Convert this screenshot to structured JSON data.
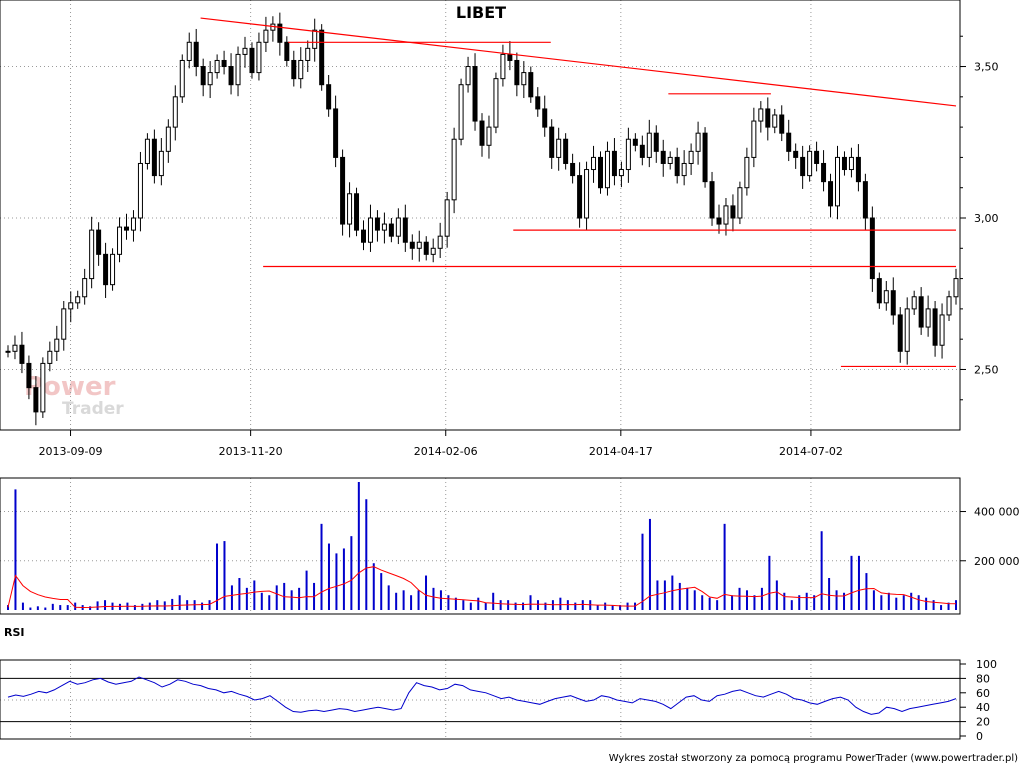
{
  "chart_data": [
    {
      "type": "candlestick",
      "title": "LIBET",
      "x_tick_labels": [
        "2013-09-09",
        "2013-11-20",
        "2014-02-06",
        "2014-04-17",
        "2014-07-02"
      ],
      "y_tick_labels": [
        "3,50",
        "3,00",
        "2,50"
      ],
      "ylim": [
        2.32,
        3.68
      ],
      "grid": true,
      "line_color": "#ff0000",
      "candle_color": "#000000",
      "close_series": [
        2.56,
        2.58,
        2.52,
        2.44,
        2.36,
        2.52,
        2.56,
        2.6,
        2.7,
        2.72,
        2.74,
        2.8,
        2.96,
        2.88,
        2.78,
        2.88,
        2.97,
        2.96,
        3.0,
        3.18,
        3.26,
        3.14,
        3.22,
        3.3,
        3.4,
        3.52,
        3.58,
        3.5,
        3.44,
        3.48,
        3.52,
        3.5,
        3.44,
        3.54,
        3.56,
        3.48,
        3.58,
        3.62,
        3.64,
        3.58,
        3.52,
        3.46,
        3.52,
        3.56,
        3.62,
        3.44,
        3.36,
        3.2,
        2.98,
        3.08,
        2.96,
        2.92,
        3.0,
        2.96,
        2.98,
        2.94,
        3.0,
        2.92,
        2.9,
        2.92,
        2.88,
        2.9,
        2.94,
        3.06,
        3.26,
        3.44,
        3.5,
        3.32,
        3.24,
        3.3,
        3.46,
        3.54,
        3.52,
        3.44,
        3.48,
        3.4,
        3.36,
        3.3,
        3.2,
        3.26,
        3.18,
        3.14,
        3.0,
        3.16,
        3.2,
        3.1,
        3.22,
        3.14,
        3.16,
        3.26,
        3.24,
        3.2,
        3.28,
        3.22,
        3.18,
        3.2,
        3.14,
        3.18,
        3.22,
        3.28,
        3.12,
        3.0,
        2.98,
        3.04,
        3.0,
        3.1,
        3.2,
        3.32,
        3.36,
        3.3,
        3.34,
        3.28,
        3.22,
        3.2,
        3.14,
        3.22,
        3.18,
        3.12,
        3.04,
        3.2,
        3.16,
        3.2,
        3.12,
        3.0,
        2.8,
        2.72,
        2.76,
        2.68,
        2.56,
        2.7,
        2.74,
        2.64,
        2.7,
        2.58,
        2.68,
        2.74,
        2.8
      ],
      "support_resistance_lines": [
        {
          "from": "2013-10-31",
          "to": "2014-08-29",
          "start_value": 3.66,
          "end_value": 3.37
        },
        {
          "from": "2013-12-05",
          "to": "2014-03-20",
          "start_value": 3.58,
          "end_value": 3.58
        },
        {
          "from": "2014-05-06",
          "to": "2014-06-16",
          "start_value": 3.41,
          "end_value": 3.41
        },
        {
          "from": "2014-03-05",
          "to": "2014-08-29",
          "start_value": 2.96,
          "end_value": 2.96
        },
        {
          "from": "2013-11-25",
          "to": "2014-08-29",
          "start_value": 2.84,
          "end_value": 2.84
        },
        {
          "from": "2014-07-14",
          "to": "2014-08-29",
          "start_value": 2.51,
          "end_value": 2.51
        }
      ]
    },
    {
      "type": "bar",
      "y_tick_labels": [
        "400 000",
        "200 000"
      ],
      "ylim": [
        0,
        520000
      ],
      "bar_color": "#0000cc",
      "average_color": "#ff0000",
      "values": [
        20000,
        490000,
        30000,
        10000,
        15000,
        10000,
        25000,
        20000,
        20000,
        30000,
        20000,
        15000,
        35000,
        40000,
        30000,
        25000,
        30000,
        20000,
        25000,
        30000,
        40000,
        35000,
        45000,
        60000,
        40000,
        40000,
        30000,
        40000,
        270000,
        280000,
        100000,
        130000,
        90000,
        120000,
        70000,
        60000,
        100000,
        110000,
        80000,
        90000,
        160000,
        110000,
        350000,
        270000,
        230000,
        250000,
        300000,
        520000,
        450000,
        190000,
        150000,
        100000,
        70000,
        80000,
        60000,
        80000,
        140000,
        90000,
        80000,
        60000,
        50000,
        40000,
        30000,
        50000,
        30000,
        70000,
        40000,
        40000,
        30000,
        30000,
        60000,
        40000,
        30000,
        40000,
        50000,
        40000,
        30000,
        40000,
        40000,
        20000,
        30000,
        20000,
        20000,
        30000,
        30000,
        310000,
        370000,
        120000,
        120000,
        140000,
        110000,
        90000,
        80000,
        60000,
        50000,
        40000,
        350000,
        60000,
        90000,
        80000,
        60000,
        90000,
        220000,
        120000,
        70000,
        40000,
        60000,
        70000,
        60000,
        320000,
        130000,
        80000,
        70000,
        220000,
        220000,
        150000,
        80000,
        60000,
        70000,
        50000,
        60000,
        70000,
        60000,
        50000,
        40000,
        20000,
        30000,
        40000
      ]
    },
    {
      "type": "line",
      "title": "RSI",
      "y_tick_labels": [
        "100",
        "80",
        "60",
        "40",
        "20",
        "0"
      ],
      "ylim": [
        0,
        100
      ],
      "guide_levels": [
        80,
        50,
        20
      ],
      "line_color": "#0000cc",
      "values": [
        54,
        57,
        55,
        58,
        62,
        60,
        64,
        70,
        76,
        72,
        74,
        78,
        80,
        75,
        72,
        74,
        76,
        82,
        78,
        74,
        68,
        72,
        78,
        76,
        72,
        70,
        66,
        64,
        60,
        62,
        58,
        55,
        50,
        52,
        56,
        48,
        40,
        34,
        33,
        35,
        36,
        34,
        36,
        38,
        37,
        34,
        36,
        38,
        40,
        38,
        36,
        38,
        60,
        74,
        70,
        68,
        64,
        66,
        72,
        70,
        64,
        62,
        60,
        56,
        52,
        54,
        50,
        48,
        46,
        44,
        48,
        52,
        54,
        56,
        52,
        48,
        50,
        56,
        54,
        50,
        48,
        46,
        52,
        50,
        48,
        44,
        38,
        46,
        54,
        56,
        50,
        48,
        56,
        58,
        62,
        64,
        60,
        56,
        54,
        58,
        62,
        58,
        52,
        50,
        46,
        44,
        48,
        52,
        54,
        50,
        40,
        34,
        30,
        32,
        40,
        38,
        34,
        38,
        40,
        42,
        44,
        46,
        48,
        52
      ]
    }
  ],
  "footer": "Wykres został stworzony za pomocą programu PowerTrader (www.powertrader.pl)",
  "watermark": {
    "line1": "Power",
    "line2": "Trader"
  }
}
